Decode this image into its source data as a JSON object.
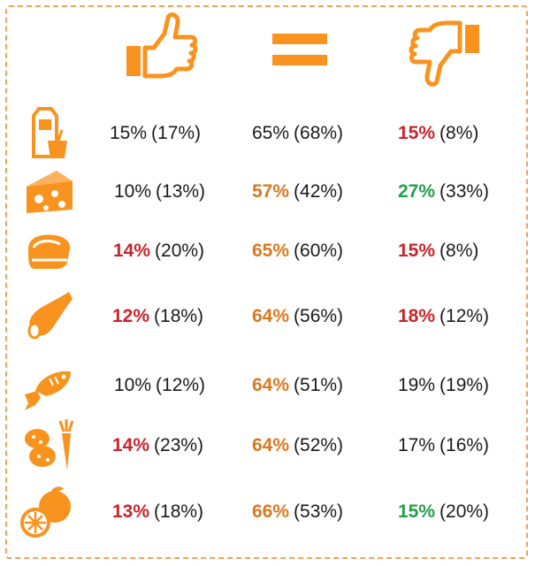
{
  "colors": {
    "icon_orange": "#f7931e",
    "frame_orange": "#f0a35a",
    "red": "#c8242b",
    "orange": "#d9781f",
    "green": "#22a04b",
    "normal": "#1a1a1a"
  },
  "header": {
    "col1_icon": "thumbs-up-icon",
    "col2_icon": "equals-icon",
    "col3_icon": "thumbs-down-icon"
  },
  "rows": [
    {
      "icon": "milk-yogurt-icon",
      "c1": {
        "value": "15%",
        "prev": "(17%)",
        "color": "normal"
      },
      "c2": {
        "value": "65%",
        "prev": "(68%)",
        "color": "normal"
      },
      "c3": {
        "value": "15%",
        "prev": "(8%)",
        "color": "red"
      }
    },
    {
      "icon": "cheese-icon",
      "c1": {
        "value": "10%",
        "prev": "(13%)",
        "color": "normal"
      },
      "c2": {
        "value": "57%",
        "prev": "(42%)",
        "color": "orange"
      },
      "c3": {
        "value": "27%",
        "prev": "(33%)",
        "color": "green"
      }
    },
    {
      "icon": "meat-steak-icon",
      "c1": {
        "value": "14%",
        "prev": "(20%)",
        "color": "red"
      },
      "c2": {
        "value": "65%",
        "prev": "(60%)",
        "color": "orange"
      },
      "c3": {
        "value": "15%",
        "prev": "(8%)",
        "color": "red"
      }
    },
    {
      "icon": "sausage-icon",
      "c1": {
        "value": "12%",
        "prev": "(18%)",
        "color": "red"
      },
      "c2": {
        "value": "64%",
        "prev": "(56%)",
        "color": "orange"
      },
      "c3": {
        "value": "18%",
        "prev": "(12%)",
        "color": "red"
      }
    },
    {
      "icon": "fish-icon",
      "c1": {
        "value": "10%",
        "prev": "(12%)",
        "color": "normal"
      },
      "c2": {
        "value": "64%",
        "prev": "(51%)",
        "color": "orange"
      },
      "c3": {
        "value": "19%",
        "prev": "(19%)",
        "color": "normal"
      }
    },
    {
      "icon": "potato-carrot-icon",
      "c1": {
        "value": "14%",
        "prev": "(23%)",
        "color": "red"
      },
      "c2": {
        "value": "64%",
        "prev": "(52%)",
        "color": "orange"
      },
      "c3": {
        "value": "17%",
        "prev": "(16%)",
        "color": "normal"
      }
    },
    {
      "icon": "orange-fruit-icon",
      "c1": {
        "value": "13%",
        "prev": "(18%)",
        "color": "red"
      },
      "c2": {
        "value": "66%",
        "prev": "(53%)",
        "color": "orange"
      },
      "c3": {
        "value": "15%",
        "prev": "(20%)",
        "color": "green"
      }
    }
  ]
}
